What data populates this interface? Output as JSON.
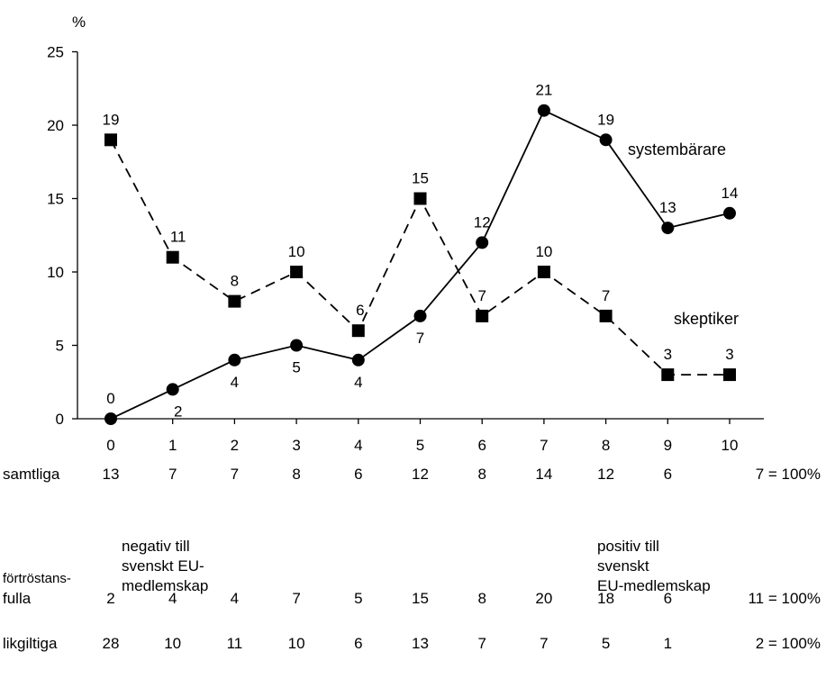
{
  "chart_data": {
    "type": "line",
    "y_unit": "%",
    "ylim": [
      0,
      25
    ],
    "y_ticks": [
      0,
      5,
      10,
      15,
      20,
      25
    ],
    "x": [
      0,
      1,
      2,
      3,
      4,
      5,
      6,
      7,
      8,
      9,
      10
    ],
    "series": [
      {
        "name": "systembärare",
        "style": "solid",
        "marker": "circle",
        "values": [
          0,
          2,
          4,
          5,
          4,
          7,
          12,
          21,
          19,
          13,
          14
        ]
      },
      {
        "name": "skeptiker",
        "style": "dashed",
        "marker": "square",
        "values": [
          19,
          11,
          8,
          10,
          6,
          15,
          7,
          10,
          7,
          3,
          3
        ]
      }
    ],
    "count_rows": [
      {
        "label": "samtliga",
        "values": [
          13,
          7,
          7,
          8,
          6,
          12,
          8,
          14,
          12,
          6,
          7
        ],
        "suffix": "= 100%"
      },
      {
        "label_lines": [
          "förtröstans-",
          "fulla"
        ],
        "values": [
          2,
          4,
          4,
          7,
          5,
          15,
          8,
          20,
          18,
          6,
          11
        ],
        "suffix": "= 100%"
      },
      {
        "label": "likgiltiga",
        "values": [
          28,
          10,
          11,
          10,
          6,
          13,
          7,
          7,
          5,
          1,
          2
        ],
        "suffix": "= 100%"
      }
    ],
    "notes": {
      "left": "negativ till\nsvenskt EU-\nmedlemskap",
      "right": "positiv till\nsvenskt\nEU-medlemskap"
    },
    "colors": {
      "line": "#000000",
      "background": "#ffffff"
    }
  }
}
